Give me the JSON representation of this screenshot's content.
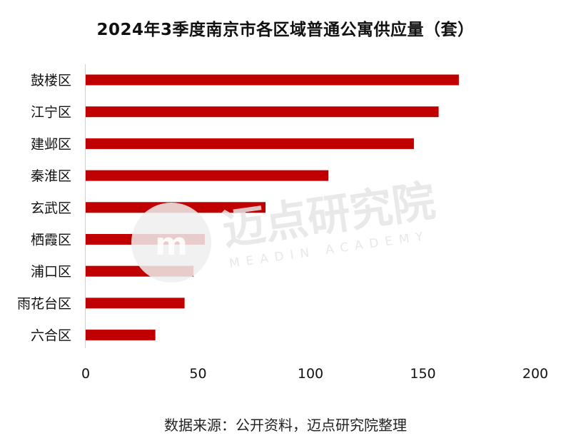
{
  "chart_data": {
    "type": "bar",
    "orientation": "horizontal",
    "title": "2024年3季度南京市各区域普通公寓供应量（套）",
    "categories": [
      "鼓楼区",
      "江宁区",
      "建邺区",
      "秦淮区",
      "玄武区",
      "栖霞区",
      "浦口区",
      "雨花台区",
      "六合区"
    ],
    "values": [
      166,
      157,
      146,
      108,
      80,
      53,
      48,
      44,
      31
    ],
    "xlim": [
      0,
      200
    ],
    "xticks": [
      "0",
      "50",
      "100",
      "150",
      "200"
    ],
    "grid": false,
    "bar_color": "#c00000"
  },
  "source": "数据来源：公开资料，迈点研究院整理",
  "watermark": {
    "name": "迈点研究院",
    "subtitle": "MEADIN ACADEMY"
  }
}
